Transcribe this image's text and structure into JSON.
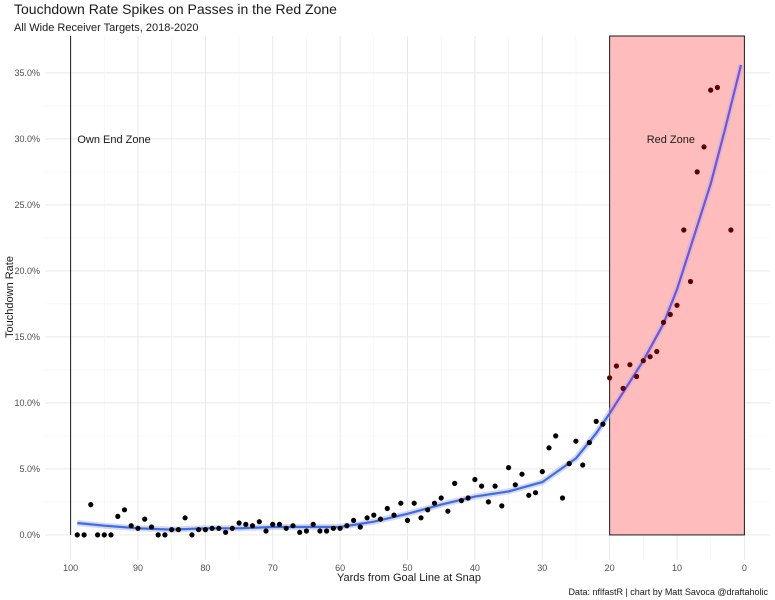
{
  "chart_data": {
    "type": "scatter",
    "title": "Touchdown Rate Spikes on Passes in the Red Zone",
    "subtitle": "All Wide Receiver Targets, 2018-2020",
    "xlabel": "Yards from Goal Line at Snap",
    "ylabel": "Touchdown Rate",
    "caption": "Data: nflfastR | chart by Matt Savoca @draftaholic",
    "xlim": [
      103.8,
      -3.8
    ],
    "ylim": [
      -1.9,
      37.8
    ],
    "x_reversed": true,
    "x_ticks": [
      100,
      90,
      80,
      70,
      60,
      50,
      40,
      30,
      20,
      10,
      0
    ],
    "x_tick_labels": [
      "100",
      "90",
      "80",
      "70",
      "60",
      "50",
      "40",
      "30",
      "20",
      "10",
      "0"
    ],
    "y_ticks": [
      0,
      5,
      10,
      15,
      20,
      25,
      30,
      35
    ],
    "y_tick_labels": [
      "0.0%",
      "5.0%",
      "10.0%",
      "15.0%",
      "20.0%",
      "25.0%",
      "30.0%",
      "35.0%"
    ],
    "grid": true,
    "annotations": [
      {
        "text": "Own End Zone",
        "x": 99,
        "y": 30
      },
      {
        "text": "Red Zone",
        "x": 14.5,
        "y": 30
      }
    ],
    "vline_x": 100,
    "red_zone": {
      "from": 20,
      "to": 0,
      "fill": "#ffbcbc",
      "stroke": "#1a1a1a"
    },
    "colors": {
      "point": "#000000",
      "point_red_zone": "#5a0000",
      "trend_line": "#3a6ee8",
      "trend_line_red_zone": "#7b4fd6",
      "trend_band": "#b8b8d8"
    },
    "series": [
      {
        "x": [
          99,
          98,
          97,
          96,
          95,
          94,
          93,
          92,
          91,
          90,
          89,
          88,
          87,
          86,
          85,
          84,
          83,
          82,
          81,
          80,
          79,
          78,
          77,
          76,
          75,
          74,
          73,
          72,
          71,
          70,
          69,
          68,
          67,
          66,
          65,
          64,
          63,
          62,
          61,
          60,
          59,
          58,
          57,
          56,
          55,
          54,
          53,
          52,
          51,
          50,
          49,
          48,
          47,
          46,
          45,
          44,
          43,
          42,
          41,
          40,
          39,
          38,
          37,
          36,
          35,
          34,
          33,
          32,
          31,
          30,
          29,
          28,
          27,
          26,
          25,
          24,
          23,
          22,
          21,
          20,
          19,
          18,
          17,
          16,
          15,
          14,
          13,
          12,
          11,
          10,
          9,
          8,
          7,
          6,
          5,
          4,
          2
        ],
        "y": [
          0.0,
          0.0,
          2.3,
          0.0,
          0.0,
          0.0,
          1.4,
          1.9,
          0.7,
          0.5,
          1.2,
          0.6,
          0.0,
          0.0,
          0.4,
          0.4,
          1.3,
          0.0,
          0.4,
          0.4,
          0.5,
          0.5,
          0.2,
          0.5,
          0.9,
          0.8,
          0.7,
          1.0,
          0.3,
          0.8,
          0.8,
          0.5,
          0.7,
          0.2,
          0.3,
          0.8,
          0.3,
          0.3,
          0.5,
          0.5,
          0.7,
          1.1,
          0.6,
          1.3,
          1.5,
          1.2,
          2.0,
          1.5,
          2.4,
          1.1,
          2.4,
          1.3,
          1.9,
          2.4,
          2.8,
          1.8,
          3.9,
          2.6,
          2.8,
          4.2,
          3.7,
          2.5,
          3.7,
          2.2,
          5.1,
          3.8,
          4.6,
          3.0,
          3.2,
          4.8,
          6.6,
          7.5,
          2.8,
          5.4,
          7.1,
          5.3,
          7.0,
          8.6,
          8.4,
          11.9,
          12.8,
          11.1,
          12.9,
          12.0,
          13.2,
          13.5,
          13.9,
          16.1,
          16.7,
          17.4,
          23.1,
          19.2,
          27.5,
          29.4,
          33.7,
          33.9,
          23.1
        ]
      }
    ],
    "trend": {
      "x": [
        99,
        95,
        90,
        85,
        80,
        75,
        70,
        65,
        60,
        55,
        50,
        45,
        40,
        35,
        30,
        25,
        22,
        20,
        18,
        15,
        12,
        10,
        8,
        5,
        3,
        0.5
      ],
      "y": [
        0.9,
        0.7,
        0.5,
        0.4,
        0.5,
        0.5,
        0.6,
        0.6,
        0.6,
        1.0,
        1.6,
        2.3,
        2.9,
        3.3,
        4.0,
        5.8,
        7.7,
        9.2,
        10.8,
        13.2,
        16.0,
        18.6,
        21.8,
        26.6,
        30.5,
        35.6
      ]
    }
  }
}
